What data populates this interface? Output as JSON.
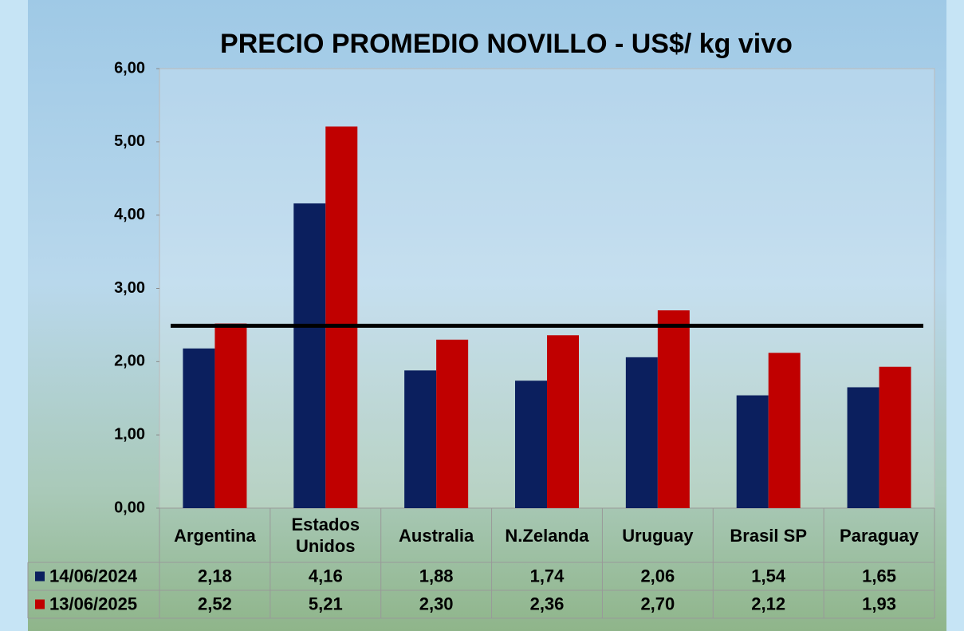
{
  "chart_data": {
    "type": "bar",
    "title": "PRECIO PROMEDIO NOVILLO  - US$/ kg vivo",
    "categories": [
      "Argentina",
      "Estados Unidos",
      "Australia",
      "N.Zelanda",
      "Uruguay",
      "Brasil SP",
      "Paraguay"
    ],
    "series": [
      {
        "name": "14/06/2024",
        "color": "#0b1f5e",
        "values": [
          2.18,
          4.16,
          1.88,
          1.74,
          2.06,
          1.54,
          1.65
        ],
        "value_labels": [
          "2,18",
          "4,16",
          "1,88",
          "1,74",
          "2,06",
          "1,54",
          "1,65"
        ]
      },
      {
        "name": "13/06/2025",
        "color": "#c00000",
        "values": [
          2.52,
          5.21,
          2.3,
          2.36,
          2.7,
          2.12,
          1.93
        ],
        "value_labels": [
          "2,52",
          "5,21",
          "2,30",
          "2,36",
          "2,70",
          "2,12",
          "1,93"
        ]
      }
    ],
    "ylim": [
      0,
      6
    ],
    "yticks": [
      {
        "value": 0,
        "label": "0,00"
      },
      {
        "value": 1,
        "label": "1,00"
      },
      {
        "value": 2,
        "label": "2,00"
      },
      {
        "value": 3,
        "label": "3,00"
      },
      {
        "value": 4,
        "label": "4,00"
      },
      {
        "value": 5,
        "label": "5,00"
      },
      {
        "value": 6,
        "label": "6,00"
      }
    ],
    "reference_line": 2.49
  }
}
